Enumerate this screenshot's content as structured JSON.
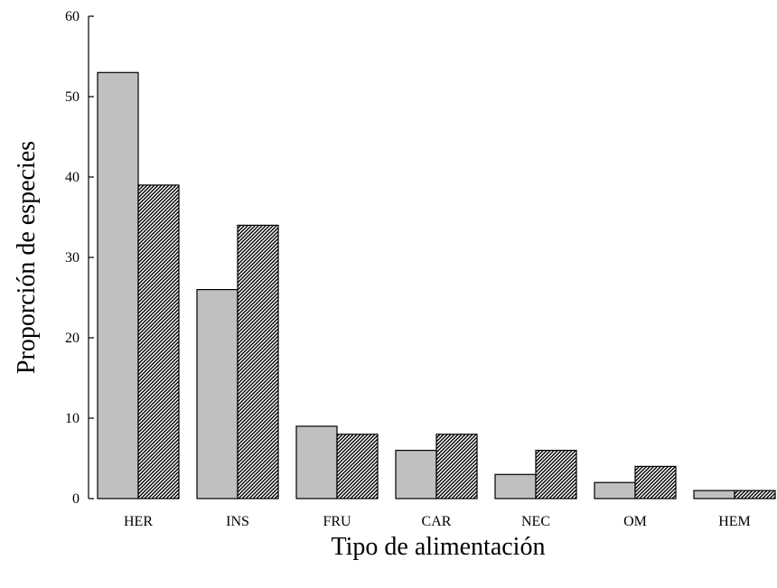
{
  "chart_data": {
    "type": "bar",
    "title": "",
    "xlabel": "Tipo de alimentación",
    "ylabel": "Proporción de especies",
    "categories": [
      "HER",
      "INS",
      "FRU",
      "CAR",
      "NEC",
      "OM",
      "HEM"
    ],
    "series": [
      {
        "fill": "#c0c0c0",
        "pattern": "solid",
        "values": [
          53,
          26,
          9,
          6,
          3,
          2,
          1
        ]
      },
      {
        "fill": "#808080",
        "pattern": "diagonal-hatch",
        "values": [
          39,
          34,
          8,
          8,
          6,
          4,
          1
        ]
      }
    ],
    "ylim": [
      0,
      60
    ],
    "yticks": [
      0,
      10,
      20,
      30,
      40,
      50,
      60
    ],
    "grid": false,
    "legend": "none"
  }
}
